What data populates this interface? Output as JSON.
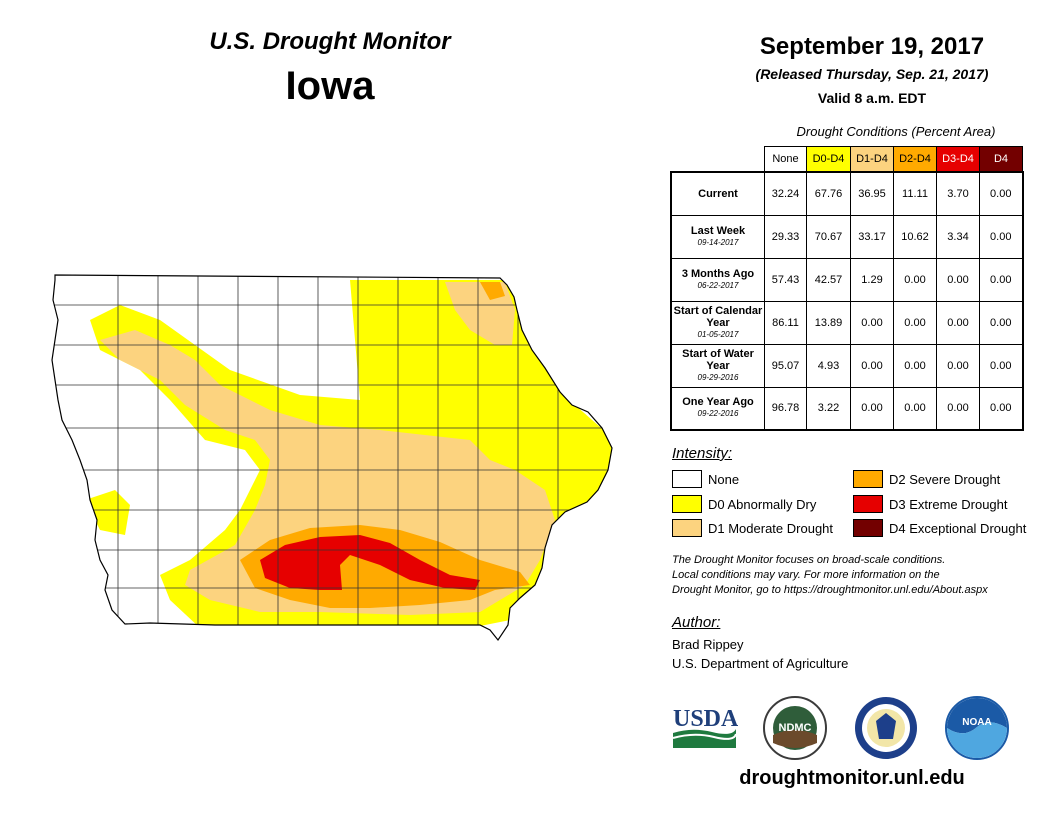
{
  "header": {
    "title": "U.S. Drought Monitor",
    "state": "Iowa",
    "date": "September 19, 2017",
    "released": "(Released Thursday, Sep. 21, 2017)",
    "valid": "Valid 8 a.m. EDT"
  },
  "table": {
    "caption": "Drought Conditions (Percent Area)",
    "columns": [
      "None",
      "D0-D4",
      "D1-D4",
      "D2-D4",
      "D3-D4",
      "D4"
    ],
    "rows": [
      {
        "label": "Current",
        "date": "",
        "values": [
          "32.24",
          "67.76",
          "36.95",
          "11.11",
          "3.70",
          "0.00"
        ]
      },
      {
        "label": "Last Week",
        "date": "09-14-2017",
        "values": [
          "29.33",
          "70.67",
          "33.17",
          "10.62",
          "3.34",
          "0.00"
        ]
      },
      {
        "label": "3 Months Ago",
        "date": "06-22-2017",
        "values": [
          "57.43",
          "42.57",
          "1.29",
          "0.00",
          "0.00",
          "0.00"
        ]
      },
      {
        "label": "Start of Calendar Year",
        "date": "01-05-2017",
        "values": [
          "86.11",
          "13.89",
          "0.00",
          "0.00",
          "0.00",
          "0.00"
        ]
      },
      {
        "label": "Start of Water Year",
        "date": "09-29-2016",
        "values": [
          "95.07",
          "4.93",
          "0.00",
          "0.00",
          "0.00",
          "0.00"
        ]
      },
      {
        "label": "One Year Ago",
        "date": "09-22-2016",
        "values": [
          "96.78",
          "3.22",
          "0.00",
          "0.00",
          "0.00",
          "0.00"
        ]
      }
    ]
  },
  "legend": {
    "title": "Intensity:",
    "items": [
      {
        "label": "None",
        "color": "#ffffff"
      },
      {
        "label": "D0 Abnormally Dry",
        "color": "#ffff00"
      },
      {
        "label": "D1 Moderate Drought",
        "color": "#fcd37f"
      },
      {
        "label": "D2 Severe Drought",
        "color": "#ffaa00"
      },
      {
        "label": "D3 Extreme Drought",
        "color": "#e60000"
      },
      {
        "label": "D4 Exceptional Drought",
        "color": "#730000"
      }
    ]
  },
  "disclaimer": {
    "line1": "The Drought Monitor focuses on broad-scale conditions.",
    "line2": "Local conditions may vary. For more information on the",
    "line3": "Drought Monitor, go to https://droughtmonitor.unl.edu/About.aspx"
  },
  "author": {
    "title": "Author:",
    "name": "Brad Rippey",
    "org": "U.S. Department of Agriculture"
  },
  "logos": {
    "usda": "USDA",
    "ndmc": "NDMC",
    "noaa": "NOAA"
  },
  "website": "droughtmonitor.unl.edu"
}
